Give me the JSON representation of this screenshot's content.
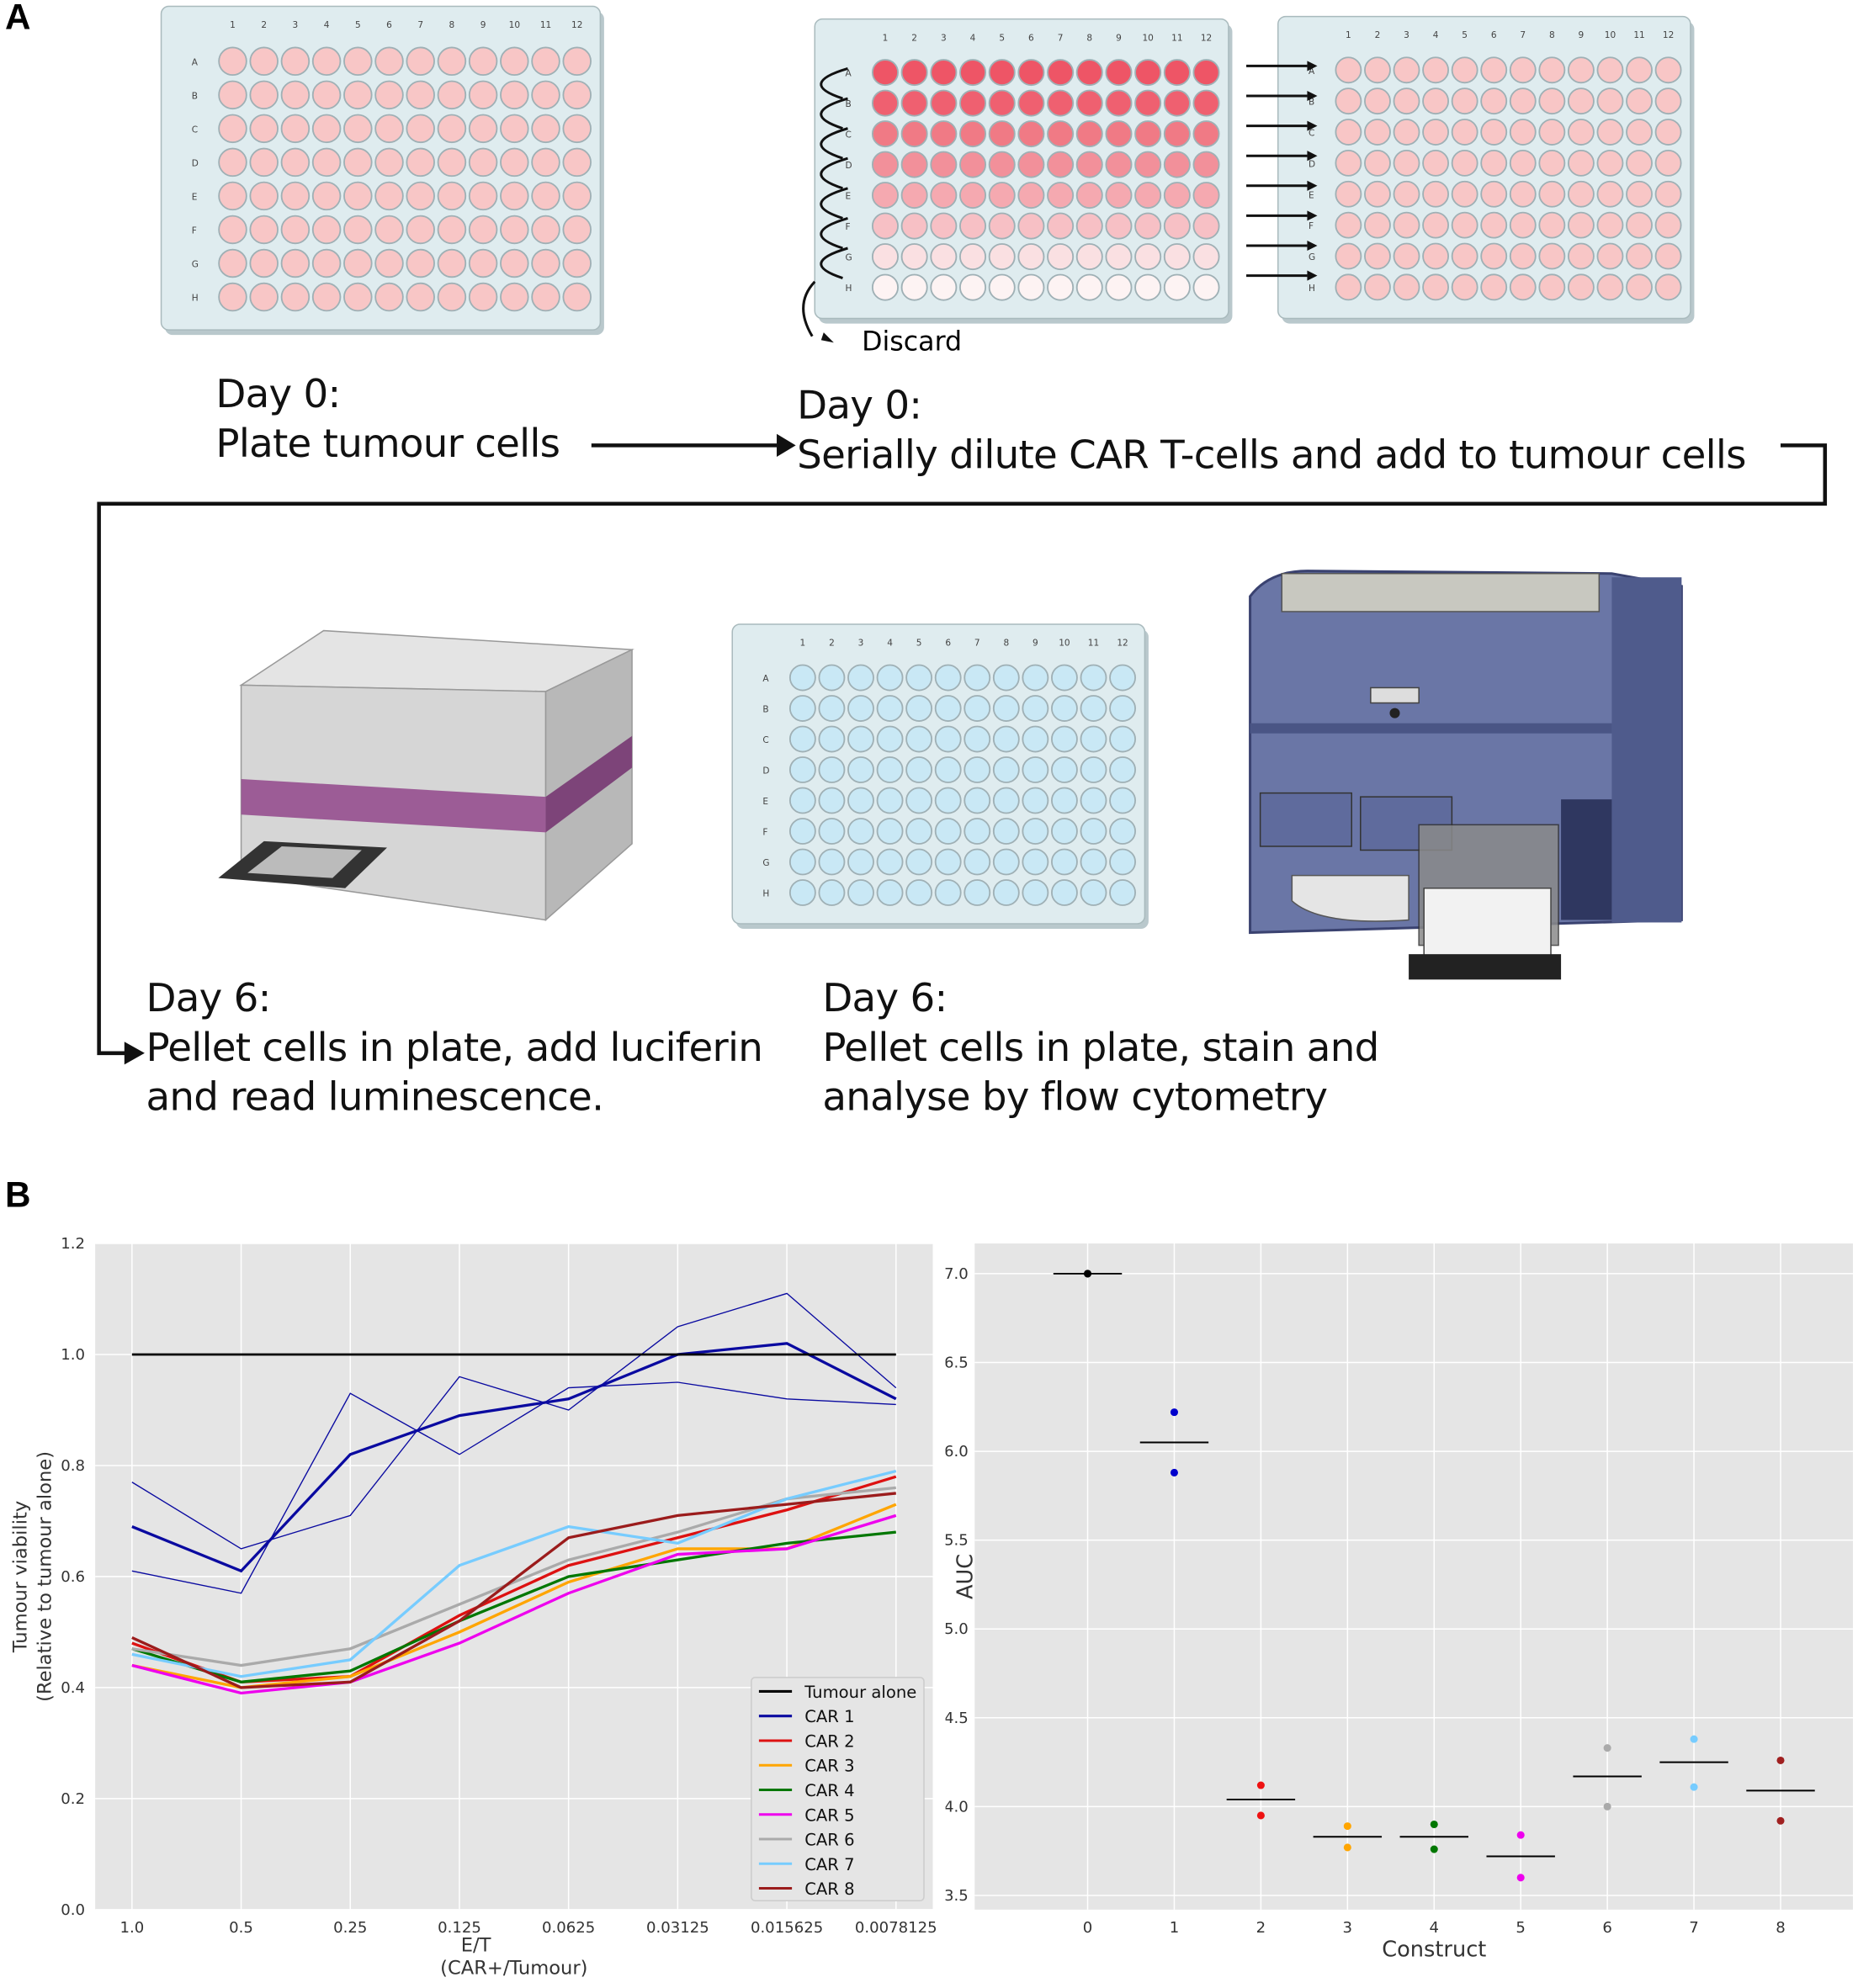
{
  "panel_a": {
    "label": "A",
    "plate_columns": [
      "1",
      "2",
      "3",
      "4",
      "5",
      "6",
      "7",
      "8",
      "9",
      "10",
      "11",
      "12"
    ],
    "plate_rows": [
      "A",
      "B",
      "C",
      "D",
      "E",
      "F",
      "G",
      "H"
    ],
    "colors": {
      "tumour_well": "#f8c6c6",
      "car_well_dark": "#ee5566",
      "stained_well": "#c9e8f5",
      "plate": "#dfecef",
      "reader_stripe": "#9c5c96",
      "cytometer": "#5e6a9c"
    },
    "discard_label": "Discard",
    "step1": {
      "day": "Day 0:",
      "text": "Plate tumour cells"
    },
    "step2": {
      "day": "Day 0:",
      "text": "Serially dilute CAR T-cells and add to tumour cells"
    },
    "step3": {
      "day": "Day 6:",
      "line1": "Pellet cells in plate, add luciferin",
      "line2": "and read luminescence."
    },
    "step4": {
      "day": "Day 6:",
      "line1": "Pellet cells in plate, stain and",
      "line2": "analyse by flow cytometry"
    }
  },
  "panel_b": {
    "label": "B"
  },
  "chart_data": [
    {
      "type": "line",
      "xlabel": "E/T",
      "xlabel2": "(CAR+/Tumour)",
      "ylabel": "Tumour viability",
      "ylabel2": "(Relative to tumour alone)",
      "categories": [
        "1.0",
        "0.5",
        "0.25",
        "0.125",
        "0.0625",
        "0.03125",
        "0.015625",
        "0.0078125"
      ],
      "ylim": [
        0,
        1.2
      ],
      "yticks": [
        "0.0",
        "0.2",
        "0.4",
        "0.6",
        "0.8",
        "1.0",
        "1.2"
      ],
      "grid": true,
      "legend": "bottom-right",
      "series": [
        {
          "name": "Tumour alone",
          "color": "#000000",
          "values": [
            1,
            1,
            1,
            1,
            1,
            1,
            1,
            1
          ]
        },
        {
          "name": "CAR 1",
          "color": "#0a0aa0",
          "values": [
            0.69,
            0.61,
            0.82,
            0.89,
            0.92,
            1.0,
            1.02,
            0.92
          ],
          "replicates": [
            [
              0.77,
              0.65,
              0.71,
              0.96,
              0.9,
              1.05,
              1.11,
              0.94
            ],
            [
              0.61,
              0.57,
              0.93,
              0.82,
              0.94,
              0.95,
              0.92,
              0.91
            ]
          ]
        },
        {
          "name": "CAR 2",
          "color": "#dd1111",
          "values": [
            0.48,
            0.41,
            0.42,
            0.53,
            0.62,
            0.67,
            0.72,
            0.78
          ]
        },
        {
          "name": "CAR 3",
          "color": "#ffa500",
          "values": [
            0.44,
            0.4,
            0.42,
            0.5,
            0.59,
            0.65,
            0.65,
            0.73
          ]
        },
        {
          "name": "CAR 4",
          "color": "#007700",
          "values": [
            0.47,
            0.41,
            0.43,
            0.52,
            0.6,
            0.63,
            0.66,
            0.68
          ]
        },
        {
          "name": "CAR 5",
          "color": "#ee00ee",
          "values": [
            0.44,
            0.39,
            0.41,
            0.48,
            0.57,
            0.64,
            0.65,
            0.71
          ]
        },
        {
          "name": "CAR 6",
          "color": "#aaaaaa",
          "values": [
            0.47,
            0.44,
            0.47,
            0.55,
            0.63,
            0.68,
            0.74,
            0.76
          ]
        },
        {
          "name": "CAR 7",
          "color": "#77ccff",
          "values": [
            0.46,
            0.42,
            0.45,
            0.62,
            0.69,
            0.66,
            0.74,
            0.79
          ]
        },
        {
          "name": "CAR 8",
          "color": "#9b1c1c",
          "values": [
            0.49,
            0.4,
            0.41,
            0.52,
            0.67,
            0.71,
            0.73,
            0.75
          ]
        }
      ]
    },
    {
      "type": "scatter",
      "xlabel": "Construct",
      "ylabel": "AUC",
      "ylim": [
        3.42,
        7.17
      ],
      "yticks": [
        "3.5",
        "4.0",
        "4.5",
        "5.0",
        "5.5",
        "6.0",
        "6.5",
        "7.0"
      ],
      "xticks": [
        "0",
        "1",
        "2",
        "3",
        "4",
        "5",
        "6",
        "7",
        "8"
      ],
      "grid": true,
      "points": [
        {
          "construct": 0,
          "color": "#000000",
          "values": [
            7.0,
            7.0
          ],
          "mean": 7.0
        },
        {
          "construct": 1,
          "color": "#0000cc",
          "values": [
            6.22,
            5.88
          ],
          "mean": 6.05
        },
        {
          "construct": 2,
          "color": "#ee1111",
          "values": [
            4.12,
            3.95
          ],
          "mean": 4.04
        },
        {
          "construct": 3,
          "color": "#ffa500",
          "values": [
            3.89,
            3.77
          ],
          "mean": 3.83
        },
        {
          "construct": 4,
          "color": "#007700",
          "values": [
            3.9,
            3.76
          ],
          "mean": 3.83
        },
        {
          "construct": 5,
          "color": "#ee00ee",
          "values": [
            3.84,
            3.6
          ],
          "mean": 3.72
        },
        {
          "construct": 6,
          "color": "#aaaaaa",
          "values": [
            4.33,
            4.0
          ],
          "mean": 4.17
        },
        {
          "construct": 7,
          "color": "#77ccff",
          "values": [
            4.38,
            4.11
          ],
          "mean": 4.25
        },
        {
          "construct": 8,
          "color": "#a02020",
          "values": [
            4.26,
            3.92
          ],
          "mean": 4.09
        }
      ]
    }
  ]
}
